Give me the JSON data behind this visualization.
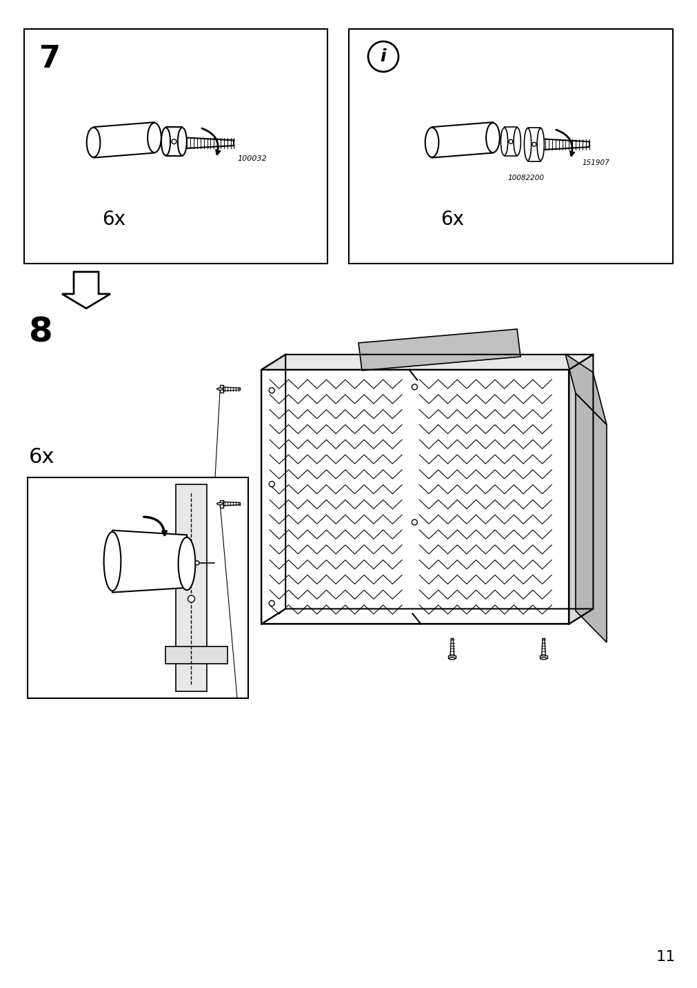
{
  "page_number": "11",
  "step7_label": "7",
  "step8_label": "8",
  "info_symbol": "i",
  "qty_label": "6x",
  "part_code_7": "100032",
  "part_code_info1": "10082200",
  "part_code_info2": "151907",
  "background_color": "#ffffff",
  "line_color": "#000000",
  "gray_color": "#aaaaaa",
  "light_gray": "#cccccc",
  "mid_gray": "#999999"
}
